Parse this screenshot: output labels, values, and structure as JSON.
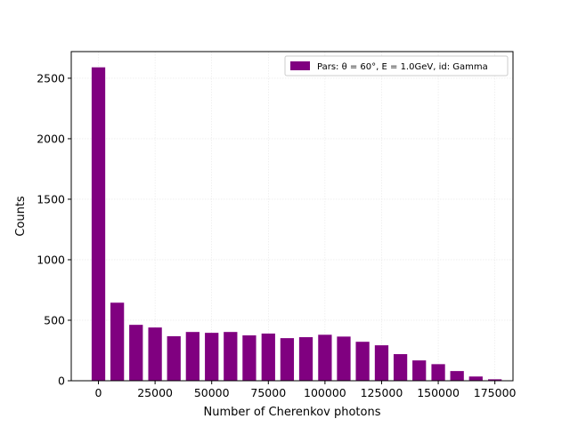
{
  "chart_data": {
    "type": "bar",
    "xlabel": "Number of Cherenkov photons",
    "ylabel": "Counts",
    "xlim": [
      -12000,
      183000
    ],
    "ylim": [
      0,
      2720
    ],
    "xticks": [
      0,
      25000,
      50000,
      75000,
      100000,
      125000,
      150000,
      175000
    ],
    "yticks": [
      0,
      500,
      1000,
      1500,
      2000,
      2500
    ],
    "grid": true,
    "legend_position": "top-right",
    "bar_width": 6000,
    "series": [
      {
        "name": "Pars: θ = 60°, E = 1.0GeV, id: Gamma",
        "color": "#800080",
        "x": [
          0,
          8300,
          16600,
          25000,
          33300,
          41600,
          50000,
          58300,
          66600,
          75000,
          83300,
          91600,
          100000,
          108300,
          116600,
          125000,
          133300,
          141600,
          150000,
          158300,
          166600,
          175000
        ],
        "values": [
          2590,
          645,
          462,
          440,
          368,
          403,
          396,
          403,
          375,
          390,
          352,
          360,
          380,
          365,
          322,
          293,
          220,
          168,
          137,
          80,
          35,
          12
        ]
      }
    ]
  }
}
